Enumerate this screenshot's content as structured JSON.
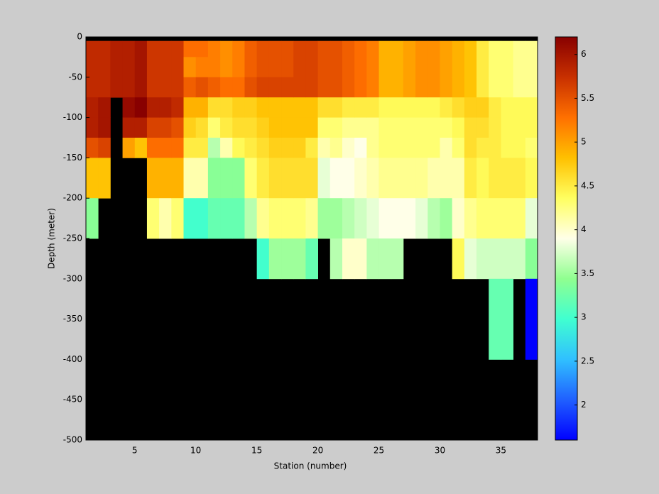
{
  "chart_data": {
    "type": "heatmap",
    "xlabel": "Station (number)",
    "ylabel": "Depth (meter)",
    "xlim": [
      1,
      38
    ],
    "ylim": [
      -500,
      0
    ],
    "xticks": [
      5,
      10,
      15,
      20,
      25,
      30,
      35
    ],
    "yticks": [
      0,
      -50,
      -100,
      -150,
      -200,
      -250,
      -300,
      -350,
      -400,
      -450,
      -500
    ],
    "x_edges": [
      1,
      2,
      3,
      4,
      5,
      6,
      7,
      8,
      9,
      10,
      11,
      12,
      13,
      14,
      15,
      16,
      17,
      18,
      19,
      20,
      21,
      22,
      23,
      24,
      25,
      26,
      27,
      28,
      29,
      30,
      31,
      32,
      33,
      34,
      35,
      36,
      37,
      38
    ],
    "y_edges": [
      -5,
      -25,
      -50,
      -75,
      -100,
      -125,
      -150,
      -200,
      -250,
      -300,
      -400
    ],
    "z": [
      [
        5.8,
        5.8,
        5.8,
        5.9,
        5.9,
        5.5,
        4.8,
        3.4,
        null,
        null
      ],
      [
        5.8,
        5.8,
        5.8,
        6.0,
        6.0,
        5.6,
        4.8,
        null,
        null,
        null
      ],
      [
        5.9,
        5.9,
        5.9,
        null,
        null,
        null,
        null,
        null,
        null,
        null
      ],
      [
        5.9,
        5.9,
        5.9,
        6.1,
        5.9,
        5.0,
        null,
        null,
        null,
        null
      ],
      [
        6.0,
        6.0,
        6.0,
        6.2,
        5.9,
        4.8,
        null,
        null,
        null,
        null
      ],
      [
        5.7,
        5.7,
        5.7,
        5.9,
        5.6,
        5.3,
        4.9,
        4.3,
        null,
        null
      ],
      [
        5.7,
        5.7,
        5.7,
        5.9,
        5.6,
        5.3,
        4.9,
        4.1,
        null,
        null
      ],
      [
        5.7,
        5.7,
        5.7,
        5.8,
        5.5,
        5.3,
        4.9,
        4.3,
        null,
        null
      ],
      [
        5.3,
        5.1,
        5.4,
        4.9,
        4.7,
        4.5,
        4.1,
        3.0,
        null,
        null
      ],
      [
        5.3,
        5.2,
        5.5,
        4.9,
        4.6,
        4.5,
        4.1,
        3.0,
        null,
        null
      ],
      [
        5.2,
        5.2,
        5.4,
        4.6,
        4.3,
        3.6,
        3.4,
        3.2,
        null,
        null
      ],
      [
        5.1,
        5.1,
        5.3,
        4.6,
        4.5,
        4.1,
        3.4,
        3.2,
        null,
        null
      ],
      [
        5.2,
        5.2,
        5.3,
        4.7,
        4.6,
        4.4,
        3.4,
        3.2,
        null,
        null
      ],
      [
        5.4,
        5.4,
        5.5,
        4.7,
        4.6,
        4.5,
        4.3,
        3.6,
        null,
        null
      ],
      [
        5.5,
        5.5,
        5.6,
        4.8,
        4.7,
        4.6,
        4.5,
        4.2,
        3.0,
        null
      ],
      [
        5.5,
        5.5,
        5.6,
        4.8,
        4.8,
        4.7,
        4.6,
        4.3,
        3.5,
        null
      ],
      [
        5.5,
        5.5,
        5.6,
        4.8,
        4.8,
        4.7,
        4.6,
        4.3,
        3.5,
        null
      ],
      [
        5.6,
        5.6,
        5.6,
        4.8,
        4.8,
        4.7,
        4.6,
        4.3,
        3.5,
        null
      ],
      [
        5.6,
        5.6,
        5.6,
        4.8,
        4.8,
        4.5,
        4.6,
        4.2,
        3.2,
        null
      ],
      [
        5.5,
        5.5,
        5.5,
        4.6,
        4.3,
        4.1,
        3.8,
        3.5,
        null,
        null
      ],
      [
        5.5,
        5.5,
        5.5,
        4.6,
        4.3,
        4.2,
        3.9,
        3.5,
        3.6,
        null
      ],
      [
        5.4,
        5.4,
        5.4,
        4.5,
        4.2,
        4.0,
        3.9,
        3.6,
        4.0,
        null
      ],
      [
        5.3,
        5.3,
        5.3,
        4.5,
        4.2,
        3.9,
        4.0,
        3.7,
        4.0,
        null
      ],
      [
        5.2,
        5.2,
        5.2,
        4.5,
        4.2,
        4.2,
        4.1,
        3.8,
        3.6,
        null
      ],
      [
        4.9,
        4.9,
        4.9,
        4.4,
        4.3,
        4.3,
        4.2,
        3.9,
        3.6,
        null
      ],
      [
        4.9,
        4.9,
        4.9,
        4.4,
        4.3,
        4.3,
        4.2,
        3.9,
        3.6,
        null
      ],
      [
        5.0,
        5.0,
        5.0,
        4.4,
        4.3,
        4.3,
        4.2,
        3.9,
        null,
        null
      ],
      [
        5.1,
        5.1,
        5.1,
        4.4,
        4.3,
        4.3,
        4.2,
        3.8,
        null,
        null
      ],
      [
        5.1,
        5.1,
        5.1,
        4.4,
        4.3,
        4.3,
        4.1,
        3.6,
        null,
        null
      ],
      [
        5.0,
        5.0,
        5.0,
        4.5,
        4.3,
        4.1,
        4.1,
        3.5,
        null,
        null
      ],
      [
        4.9,
        4.9,
        4.9,
        4.6,
        4.4,
        4.3,
        4.1,
        4.0,
        4.4,
        null
      ],
      [
        4.8,
        4.8,
        4.8,
        4.7,
        4.6,
        4.6,
        4.5,
        4.2,
        3.8,
        null
      ],
      [
        4.5,
        4.5,
        4.5,
        4.7,
        4.6,
        4.5,
        4.4,
        4.3,
        3.7,
        null
      ],
      [
        4.3,
        4.3,
        4.3,
        4.5,
        4.5,
        4.5,
        4.5,
        4.3,
        3.7,
        3.2
      ],
      [
        4.3,
        4.3,
        4.3,
        4.4,
        4.4,
        4.4,
        4.5,
        4.3,
        3.7,
        3.2
      ],
      [
        4.2,
        4.2,
        4.2,
        4.4,
        4.4,
        4.4,
        4.5,
        4.3,
        3.7,
        null
      ],
      [
        4.2,
        4.2,
        4.2,
        4.4,
        4.4,
        4.3,
        4.4,
        3.8,
        3.4,
        1.6
      ]
    ],
    "clim": [
      1.6,
      6.2
    ],
    "cticks": [
      2,
      2.5,
      3,
      3.5,
      4,
      4.5,
      5,
      5.5,
      6
    ],
    "colormap": [
      "#0000ff",
      "#2060ff",
      "#30c0ff",
      "#40ffd0",
      "#90ff90",
      "#ffffe8",
      "#ffff60",
      "#ffc000",
      "#ff7000",
      "#c83000",
      "#880000"
    ],
    "nan_color": "#000000"
  }
}
